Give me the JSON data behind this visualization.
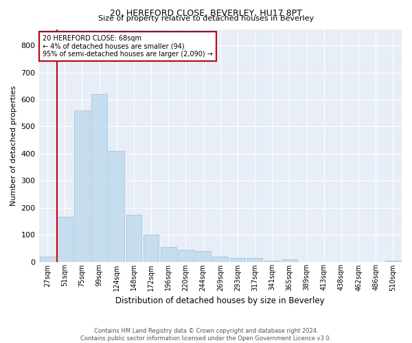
{
  "title1": "20, HEREFORD CLOSE, BEVERLEY, HU17 8PT",
  "title2": "Size of property relative to detached houses in Beverley",
  "xlabel": "Distribution of detached houses by size in Beverley",
  "ylabel": "Number of detached properties",
  "annotation_line1": "20 HEREFORD CLOSE: 68sqm",
  "annotation_line2": "← 4% of detached houses are smaller (94)",
  "annotation_line3": "95% of semi-detached houses are larger (2,090) →",
  "vline_position": 1,
  "categories": [
    "27sqm",
    "51sqm",
    "75sqm",
    "99sqm",
    "124sqm",
    "148sqm",
    "172sqm",
    "196sqm",
    "220sqm",
    "244sqm",
    "269sqm",
    "293sqm",
    "317sqm",
    "341sqm",
    "365sqm",
    "389sqm",
    "413sqm",
    "438sqm",
    "462sqm",
    "486sqm",
    "510sqm"
  ],
  "bar_values": [
    20,
    165,
    560,
    620,
    410,
    175,
    100,
    55,
    45,
    40,
    20,
    15,
    15,
    5,
    10,
    0,
    0,
    0,
    0,
    0,
    5
  ],
  "bar_color": "#c6dcef",
  "bar_edge_color": "#a0bfd4",
  "vline_color": "#cc0000",
  "box_color": "#cc0000",
  "background_color": "#e8eef8",
  "footer_text": "Contains HM Land Registry data © Crown copyright and database right 2024.\nContains public sector information licensed under the Open Government Licence v3.0.",
  "ylim": [
    0,
    860
  ],
  "yticks": [
    0,
    100,
    200,
    300,
    400,
    500,
    600,
    700,
    800
  ]
}
